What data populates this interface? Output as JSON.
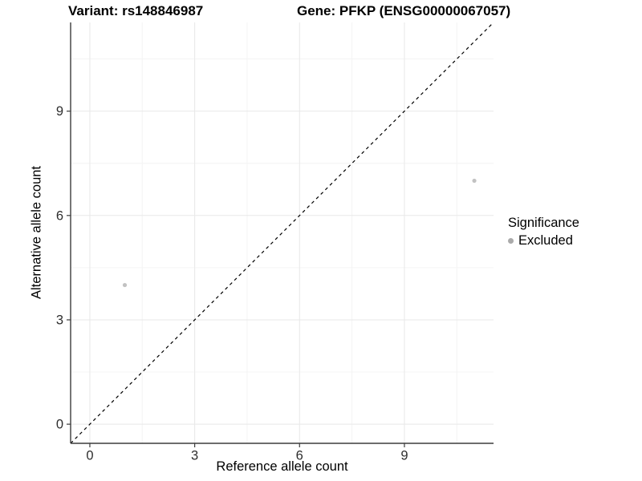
{
  "header": {
    "title_left": "Variant: rs148846987",
    "title_right": "Gene: PFKP (ENSG00000067057)"
  },
  "chart_data": {
    "type": "scatter",
    "title": "Variant: rs148846987 — Gene: PFKP (ENSG00000067057)",
    "xlabel": "Reference allele count",
    "ylabel": "Alternative allele count",
    "xlim": [
      -0.55,
      11.55
    ],
    "ylim": [
      -0.55,
      11.55
    ],
    "x_major_ticks": [
      0,
      3,
      6,
      9
    ],
    "y_major_ticks": [
      0,
      3,
      6,
      9
    ],
    "x_minor_gridlines": [
      1.5,
      4.5,
      7.5,
      10.5
    ],
    "y_minor_gridlines": [
      1.5,
      4.5,
      7.5,
      10.5
    ],
    "grid": true,
    "series": [
      {
        "name": "Excluded",
        "color": "#c2c2c2",
        "marker": "circle",
        "marker_radius": 2.6,
        "points": [
          {
            "x": 1,
            "y": 4
          },
          {
            "x": 11,
            "y": 7
          }
        ]
      }
    ],
    "reference_line": {
      "type": "identity",
      "style": "dashed",
      "color": "#000000",
      "from": {
        "x": -0.55,
        "y": -0.55
      },
      "to": {
        "x": 11.55,
        "y": 11.55
      }
    },
    "legend": {
      "title": "Significance",
      "position": "right",
      "entries": [
        {
          "label": "Excluded",
          "color": "#aaaaaa"
        }
      ]
    },
    "style": {
      "major_grid_color": "#e8e8e8",
      "minor_grid_color": "#f4f4f4",
      "axis_line_color": "#3c3c3c",
      "tick_label_color": "#2e2e2e"
    }
  }
}
